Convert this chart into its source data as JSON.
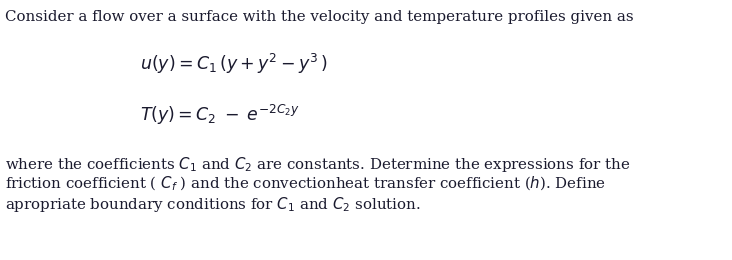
{
  "background_color": "#ffffff",
  "figsize": [
    7.32,
    2.6
  ],
  "dpi": 100,
  "line1": "Consider a flow over a surface with the velocity and temperature profiles given as",
  "eq1": "$u(y) = C_1\\,(y + y^2 - y^3\\,)$",
  "eq2": "$T(y) = C_2\\; -\\; e^{-2C_2 y}$",
  "line2_part1": "where the coefficients $C_1$ and $C_2$ are constants. Determine the expressions for the",
  "line2_part2": "friction coefficient ( $C_f$ ) and the convectionheat transfer coefficient ($h$). Define",
  "line2_part3": "apropriate boundary conditions for $C_1$ and $C_2$ solution.",
  "font_size_body": 10.8,
  "font_size_eq": 12.5,
  "text_color": "#1a1a2e"
}
